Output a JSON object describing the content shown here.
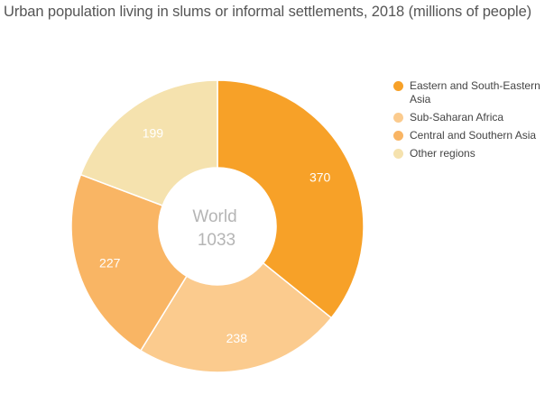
{
  "chart_data": {
    "type": "pie",
    "title": "Urban population living in slums or informal settlements, 2018 (millions of people)",
    "center_label": "World",
    "center_value": "1033",
    "categories": [
      "Eastern and South-Eastern Asia",
      "Sub-Saharan Africa",
      "Central and Southern Asia",
      "Other regions"
    ],
    "values": [
      370,
      238,
      227,
      199
    ],
    "colors": [
      "#F7A128",
      "#FBCB8E",
      "#F9B564",
      "#F5E2AE"
    ],
    "legend_position": "right"
  }
}
